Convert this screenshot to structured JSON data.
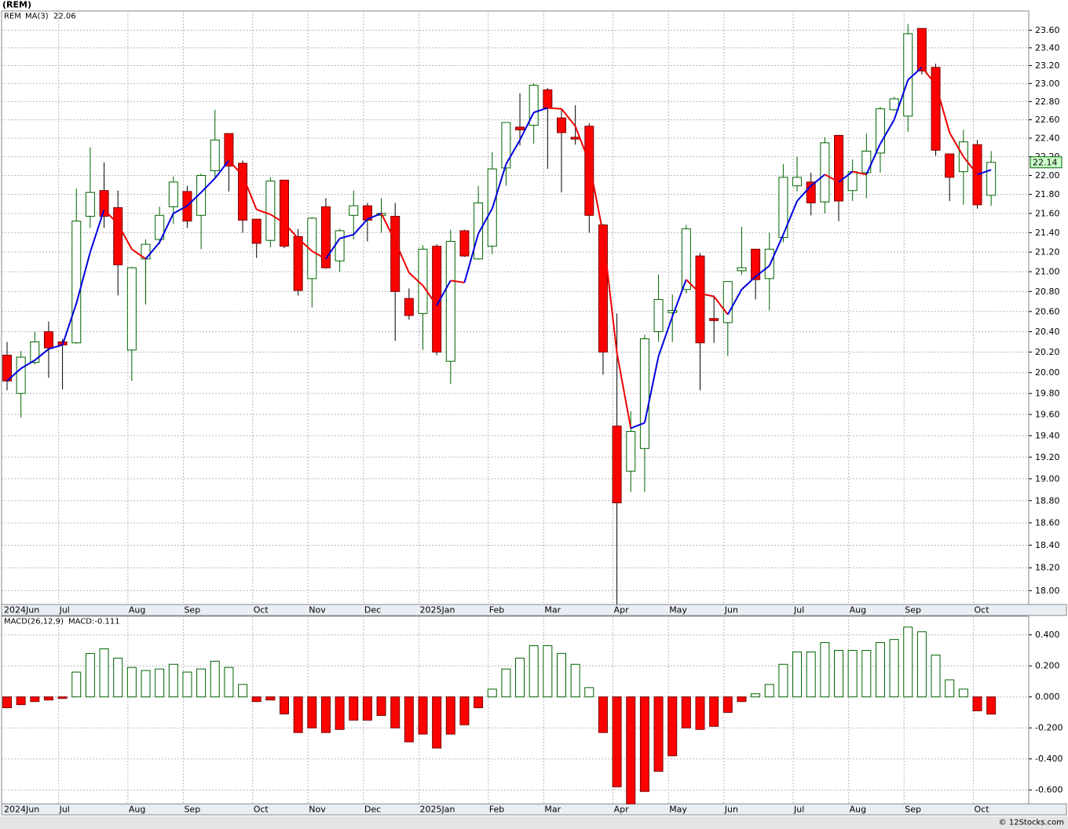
{
  "footer": "© 12Stocks.com",
  "chart_data": [
    {
      "type": "candlestick",
      "title": "(REM)",
      "log_scale": true,
      "grid": true,
      "categories": [
        "2024Jun",
        null,
        null,
        null,
        "Jul",
        null,
        null,
        null,
        null,
        "Aug",
        null,
        null,
        null,
        "Sep",
        null,
        null,
        null,
        null,
        "Oct",
        null,
        null,
        null,
        "Nov",
        null,
        null,
        null,
        "Dec",
        null,
        null,
        null,
        "2025Jan",
        null,
        null,
        null,
        null,
        "Feb",
        null,
        null,
        null,
        "Mar",
        null,
        null,
        null,
        null,
        "Apr",
        null,
        null,
        null,
        "May",
        null,
        null,
        null,
        "Jun",
        null,
        null,
        null,
        null,
        "Jul",
        null,
        null,
        null,
        "Aug",
        null,
        null,
        null,
        "Sep",
        null,
        null,
        null,
        null,
        "Oct",
        null
      ],
      "ylim": [
        17.88,
        23.82
      ],
      "yticks": [
        {
          "value": 18,
          "label": "18.00"
        },
        {
          "value": 18.2,
          "label": "18.20"
        },
        {
          "value": 18.4,
          "label": "18.40"
        },
        {
          "value": 18.6,
          "label": "18.60"
        },
        {
          "value": 18.8,
          "label": "18.80"
        },
        {
          "value": 19,
          "label": "19.00"
        },
        {
          "value": 19.2,
          "label": "19.20"
        },
        {
          "value": 19.4,
          "label": "19.40"
        },
        {
          "value": 19.6,
          "label": "19.60"
        },
        {
          "value": 19.8,
          "label": "19.80"
        },
        {
          "value": 20,
          "label": "20.00"
        },
        {
          "value": 20.2,
          "label": "20.20"
        },
        {
          "value": 20.4,
          "label": "20.40"
        },
        {
          "value": 20.6,
          "label": "20.60"
        },
        {
          "value": 20.8,
          "label": "20.80"
        },
        {
          "value": 21,
          "label": "21.00"
        },
        {
          "value": 21.2,
          "label": "21.20"
        },
        {
          "value": 21.4,
          "label": "21.40"
        },
        {
          "value": 21.6,
          "label": "21.60"
        },
        {
          "value": 21.8,
          "label": "21.80"
        },
        {
          "value": 22,
          "label": "22.00"
        },
        {
          "value": 22.2,
          "label": "22.20"
        },
        {
          "value": 22.4,
          "label": "22.40"
        },
        {
          "value": 22.6,
          "label": "22.60"
        },
        {
          "value": 22.8,
          "label": "22.80"
        },
        {
          "value": 23,
          "label": "23.00"
        },
        {
          "value": 23.2,
          "label": "23.20"
        },
        {
          "value": 23.4,
          "label": "23.40"
        },
        {
          "value": 23.6,
          "label": "23.60"
        }
      ],
      "series": [
        {
          "name": "REM",
          "up_color": "#006400",
          "down_color": "#ff0000",
          "open": [
            20.17,
            19.8,
            20.1,
            20.4,
            20.3,
            20.29,
            21.57,
            21.84,
            21.66,
            20.22,
            21.13,
            21.33,
            21.67,
            21.83,
            21.58,
            22.05,
            22.45,
            22.13,
            21.54,
            21.32,
            21.95,
            21.36,
            20.93,
            21.67,
            21.11,
            21.58,
            21.68,
            21.58,
            21.57,
            20.73,
            20.58,
            21.26,
            20.11,
            21.42,
            21.13,
            21.26,
            22.08,
            22.52,
            22.54,
            22.93,
            22.62,
            22.41,
            22.53,
            21.48,
            19.49,
            19.07,
            19.28,
            20.4,
            20.59,
            20.82,
            21.16,
            20.53,
            20.49,
            21.01,
            21.23,
            20.93,
            21.35,
            21.89,
            21.93,
            21.72,
            22.43,
            21.84,
            22.03,
            22.24,
            22.71,
            22.64,
            23.62,
            23.18,
            22.23,
            22.04,
            22.33,
            21.79
          ],
          "high": [
            20.3,
            20.21,
            20.4,
            20.5,
            20.33,
            21.86,
            22.3,
            22.14,
            21.84,
            21.05,
            21.33,
            21.67,
            21.99,
            21.89,
            22.02,
            22.71,
            22.45,
            22.16,
            21.54,
            21.98,
            21.95,
            21.44,
            21.56,
            21.76,
            21.44,
            21.84,
            21.71,
            21.76,
            21.71,
            20.83,
            21.27,
            21.28,
            21.43,
            21.43,
            21.89,
            22.25,
            22.57,
            22.89,
            23.0,
            22.95,
            22.72,
            22.76,
            22.56,
            21.49,
            20.58,
            19.63,
            20.37,
            20.97,
            20.77,
            21.48,
            21.19,
            20.76,
            20.9,
            21.46,
            21.23,
            21.4,
            22.12,
            22.2,
            22.03,
            22.41,
            22.43,
            22.17,
            22.45,
            22.74,
            22.85,
            23.67,
            23.62,
            23.22,
            22.23,
            22.49,
            22.38,
            22.26
          ],
          "low": [
            19.83,
            19.57,
            20.08,
            19.95,
            19.84,
            20.28,
            21.45,
            21.45,
            20.76,
            19.92,
            20.67,
            21.28,
            21.49,
            21.45,
            21.23,
            21.96,
            21.83,
            21.4,
            21.14,
            21.25,
            21.24,
            20.76,
            20.64,
            21.03,
            21.0,
            21.33,
            21.31,
            21.4,
            20.31,
            20.52,
            20.22,
            20.17,
            19.89,
            21.15,
            21.12,
            21.18,
            21.89,
            22.32,
            22.34,
            22.07,
            21.82,
            22.33,
            21.4,
            19.98,
            17.88,
            18.88,
            18.88,
            20.3,
            20.3,
            20.78,
            19.83,
            20.29,
            20.16,
            20.97,
            20.72,
            20.61,
            21.3,
            21.83,
            21.58,
            21.6,
            21.52,
            21.73,
            21.76,
            22.03,
            22.7,
            22.47,
            23.1,
            22.21,
            21.73,
            21.69,
            21.65,
            21.68
          ],
          "close": [
            19.92,
            20.15,
            20.3,
            20.24,
            20.27,
            21.52,
            21.82,
            21.57,
            21.07,
            21.04,
            21.28,
            21.58,
            21.93,
            21.52,
            22.0,
            22.38,
            22.1,
            21.53,
            21.29,
            21.94,
            21.26,
            20.81,
            21.55,
            21.04,
            21.42,
            21.68,
            21.53,
            21.6,
            20.8,
            20.56,
            21.23,
            20.2,
            21.31,
            21.16,
            21.71,
            22.07,
            22.57,
            22.49,
            22.98,
            22.73,
            22.46,
            22.39,
            21.58,
            20.2,
            18.78,
            19.44,
            20.33,
            20.72,
            20.61,
            21.44,
            20.29,
            20.51,
            20.9,
            21.04,
            20.92,
            21.23,
            21.98,
            21.98,
            21.71,
            22.35,
            21.73,
            22.04,
            22.26,
            22.72,
            22.83,
            23.56,
            23.14,
            22.27,
            21.98,
            22.36,
            21.69,
            22.14
          ]
        },
        {
          "name": "MA(3)",
          "color": "#0000dd",
          "down_color": "#ee0000",
          "values": [
            19.92,
            20.04,
            20.12,
            20.23,
            20.27,
            20.68,
            21.2,
            21.64,
            21.49,
            21.23,
            21.13,
            21.3,
            21.6,
            21.68,
            21.82,
            21.97,
            22.16,
            22.0,
            21.64,
            21.59,
            21.5,
            21.34,
            21.21,
            21.13,
            21.34,
            21.38,
            21.54,
            21.6,
            21.31,
            20.99,
            20.86,
            20.66,
            20.91,
            20.89,
            21.39,
            21.65,
            22.12,
            22.38,
            22.68,
            22.73,
            22.72,
            22.53,
            22.14,
            21.39,
            20.19,
            19.47,
            19.52,
            20.16,
            20.55,
            20.92,
            20.78,
            20.75,
            20.57,
            20.82,
            20.95,
            21.06,
            21.38,
            21.73,
            21.89,
            22.01,
            21.93,
            22.04,
            22.01,
            22.34,
            22.6,
            23.04,
            23.18,
            22.99,
            22.46,
            22.2,
            22.01,
            22.06
          ]
        }
      ]
    },
    {
      "type": "bar",
      "grid": true,
      "categories": [
        "2024Jun",
        null,
        null,
        null,
        "Jul",
        null,
        null,
        null,
        null,
        "Aug",
        null,
        null,
        null,
        "Sep",
        null,
        null,
        null,
        null,
        "Oct",
        null,
        null,
        null,
        "Nov",
        null,
        null,
        null,
        "Dec",
        null,
        null,
        null,
        "2025Jan",
        null,
        null,
        null,
        null,
        "Feb",
        null,
        null,
        null,
        "Mar",
        null,
        null,
        null,
        null,
        "Apr",
        null,
        null,
        null,
        "May",
        null,
        null,
        null,
        "Jun",
        null,
        null,
        null,
        null,
        "Jul",
        null,
        null,
        null,
        "Aug",
        null,
        null,
        null,
        "Sep",
        null,
        null,
        null,
        null,
        "Oct",
        null
      ],
      "ylim": [
        -0.69,
        0.52
      ],
      "yticks": [
        {
          "value": -0.6,
          "label": "-0.600"
        },
        {
          "value": -0.4,
          "label": "-0.400"
        },
        {
          "value": -0.2,
          "label": "-0.200"
        },
        {
          "value": 0,
          "label": "0.000"
        },
        {
          "value": 0.2,
          "label": "0.200"
        },
        {
          "value": 0.4,
          "label": "0.400"
        }
      ],
      "series": [
        {
          "name": "MACD(26,12,9)",
          "up_color": "#006400",
          "down_color": "#ff0000",
          "values": [
            -0.07,
            -0.05,
            -0.03,
            -0.02,
            -0.01,
            0.16,
            0.28,
            0.31,
            0.25,
            0.19,
            0.17,
            0.18,
            0.21,
            0.16,
            0.18,
            0.23,
            0.19,
            0.08,
            -0.03,
            -0.02,
            -0.11,
            -0.23,
            -0.2,
            -0.23,
            -0.21,
            -0.15,
            -0.15,
            -0.12,
            -0.2,
            -0.29,
            -0.24,
            -0.33,
            -0.24,
            -0.18,
            -0.07,
            0.05,
            0.18,
            0.25,
            0.33,
            0.33,
            0.28,
            0.21,
            0.06,
            -0.23,
            -0.58,
            -0.69,
            -0.61,
            -0.48,
            -0.38,
            -0.2,
            -0.21,
            -0.19,
            -0.1,
            -0.03,
            0.02,
            0.08,
            0.21,
            0.29,
            0.29,
            0.35,
            0.3,
            0.3,
            0.3,
            0.35,
            0.37,
            0.45,
            0.42,
            0.27,
            0.11,
            0.05,
            -0.09,
            -0.111
          ],
          "value_labels": [
            null,
            null,
            null,
            null,
            null,
            null,
            null,
            null,
            null,
            null,
            null,
            null,
            null,
            null,
            null,
            null,
            null,
            null,
            null,
            null,
            null,
            null,
            null,
            null,
            null,
            null,
            null,
            null,
            null,
            null,
            null,
            null,
            null,
            null,
            null,
            null,
            null,
            null,
            null,
            null,
            null,
            null,
            null,
            null,
            null,
            null,
            null,
            null,
            null,
            null,
            null,
            null,
            null,
            null,
            null,
            null,
            null,
            null,
            null,
            null,
            null,
            null,
            null,
            null,
            null,
            null,
            null,
            null,
            null,
            null,
            null,
            "MACD:-0.111"
          ]
        }
      ]
    }
  ]
}
